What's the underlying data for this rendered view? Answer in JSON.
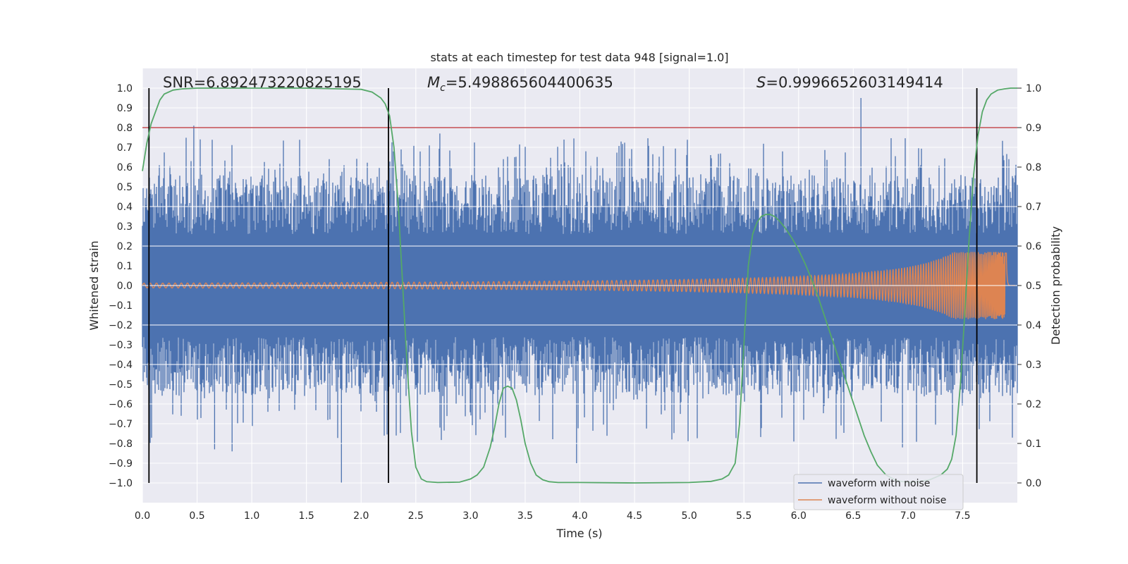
{
  "chart_data": {
    "type": "line",
    "title": "stats at each timestep for test data 948 [signal=1.0]",
    "xlabel": "Time (s)",
    "ylabel": "Whitened strain",
    "y2label": "Detection probability",
    "xlim": [
      0.0,
      8.0
    ],
    "ylim": [
      -1.1,
      1.1
    ],
    "y2lim": [
      -0.05,
      1.05
    ],
    "x_ticks": [
      "0.0",
      "0.5",
      "1.0",
      "1.5",
      "2.0",
      "2.5",
      "3.0",
      "3.5",
      "4.0",
      "4.5",
      "5.0",
      "5.5",
      "6.0",
      "6.5",
      "7.0",
      "7.5"
    ],
    "y_ticks": [
      "1.0",
      "0.9",
      "0.8",
      "0.7",
      "0.6",
      "0.5",
      "0.4",
      "0.3",
      "0.2",
      "0.1",
      "0.0",
      "−0.1",
      "−0.2",
      "−0.3",
      "−0.4",
      "−0.5",
      "−0.6",
      "−0.7",
      "−0.8",
      "−0.9",
      "−1.0"
    ],
    "y2_ticks": [
      "1.0",
      "0.9",
      "0.8",
      "0.7",
      "0.6",
      "0.5",
      "0.4",
      "0.3",
      "0.2",
      "0.1",
      "0.0"
    ],
    "annotations": {
      "snr": "SNR=6.892473220825195",
      "mc_symbol": "M",
      "mc_sub": "c",
      "mc_value": "=5.498865604400635",
      "s_symbol": "S",
      "s_value": "=0.9996652603149414"
    },
    "threshold": {
      "axis": "y2",
      "value": 0.9,
      "color": "#c44e52"
    },
    "vertical_lines": [
      0.06,
      2.25,
      7.63
    ],
    "series": [
      {
        "name": "waveform with noise",
        "color": "#4c72b0",
        "kind": "noise",
        "x_range": [
          0.0,
          8.0
        ],
        "typical_amplitude": 0.4,
        "max": 0.95,
        "min": -1.0
      },
      {
        "name": "waveform without noise",
        "color": "#dd8452",
        "kind": "chirp",
        "x_range": [
          0.0,
          7.93
        ],
        "merger_time": 7.9,
        "start_amplitude": 0.012,
        "peak_amplitude": 0.17
      },
      {
        "name": "detection probability",
        "color": "#55a868",
        "axis": "y2",
        "x": [
          0.0,
          0.04,
          0.08,
          0.12,
          0.16,
          0.2,
          0.28,
          0.36,
          0.5,
          1.0,
          1.5,
          2.0,
          2.1,
          2.18,
          2.22,
          2.26,
          2.3,
          2.34,
          2.38,
          2.42,
          2.46,
          2.5,
          2.55,
          2.6,
          2.7,
          2.9,
          3.0,
          3.06,
          3.12,
          3.18,
          3.22,
          3.26,
          3.3,
          3.34,
          3.38,
          3.42,
          3.46,
          3.5,
          3.55,
          3.6,
          3.66,
          3.72,
          3.8,
          4.0,
          4.5,
          5.0,
          5.2,
          5.3,
          5.36,
          5.42,
          5.46,
          5.5,
          5.54,
          5.58,
          5.62,
          5.66,
          5.7,
          5.74,
          5.78,
          5.82,
          5.88,
          5.94,
          6.0,
          6.06,
          6.12,
          6.18,
          6.24,
          6.3,
          6.36,
          6.42,
          6.48,
          6.54,
          6.6,
          6.66,
          6.72,
          6.8,
          6.9,
          7.0,
          7.1,
          7.2,
          7.3,
          7.36,
          7.4,
          7.44,
          7.48,
          7.52,
          7.56,
          7.6,
          7.64,
          7.68,
          7.72,
          7.76,
          7.82,
          7.88,
          7.94,
          8.0
        ],
        "values": [
          0.79,
          0.86,
          0.91,
          0.94,
          0.97,
          0.985,
          0.995,
          0.998,
          1.0,
          1.0,
          1.0,
          0.997,
          0.99,
          0.975,
          0.96,
          0.93,
          0.85,
          0.7,
          0.5,
          0.3,
          0.13,
          0.04,
          0.01,
          0.003,
          0.001,
          0.002,
          0.01,
          0.02,
          0.04,
          0.09,
          0.14,
          0.2,
          0.24,
          0.245,
          0.24,
          0.21,
          0.16,
          0.1,
          0.05,
          0.02,
          0.008,
          0.003,
          0.001,
          0.001,
          0.0,
          0.001,
          0.004,
          0.01,
          0.02,
          0.05,
          0.15,
          0.35,
          0.55,
          0.63,
          0.66,
          0.675,
          0.68,
          0.68,
          0.675,
          0.665,
          0.645,
          0.62,
          0.59,
          0.555,
          0.515,
          0.47,
          0.42,
          0.37,
          0.32,
          0.27,
          0.22,
          0.17,
          0.12,
          0.08,
          0.045,
          0.02,
          0.005,
          0.002,
          0.003,
          0.008,
          0.02,
          0.035,
          0.06,
          0.12,
          0.25,
          0.43,
          0.62,
          0.78,
          0.88,
          0.94,
          0.97,
          0.985,
          0.995,
          0.998,
          1.0,
          1.0
        ]
      }
    ],
    "legend": {
      "position": "lower-right",
      "entries": [
        {
          "label": "waveform with noise",
          "color": "#4c72b0"
        },
        {
          "label": "waveform without noise",
          "color": "#dd8452"
        }
      ]
    }
  }
}
